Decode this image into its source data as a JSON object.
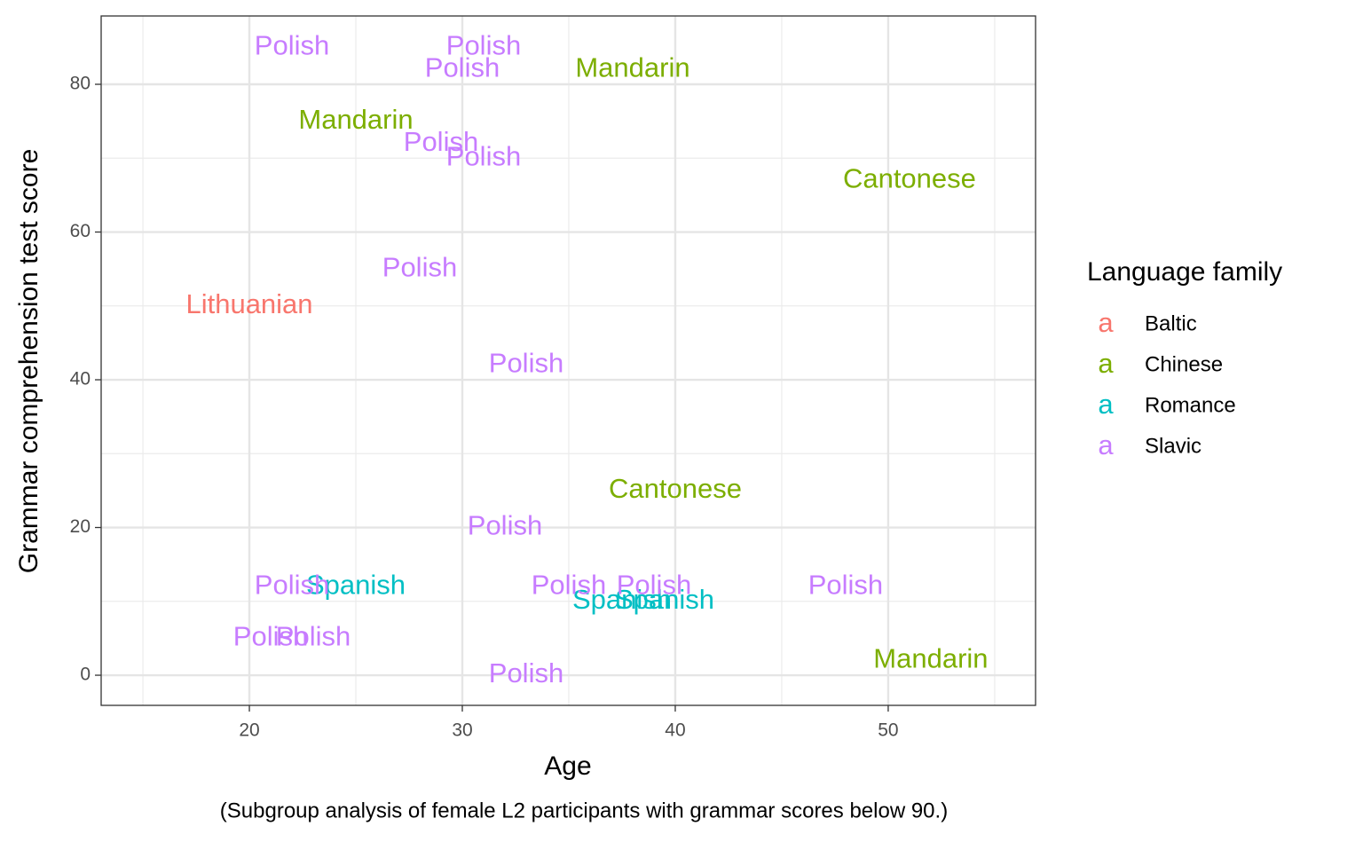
{
  "chart_data": {
    "type": "text-scatter",
    "x_label": "Age",
    "y_label": "Grammar comprehension test score",
    "caption": "(Subgroup analysis of female L2 participants with grammar scores below 90.)",
    "legend_title": "Language family",
    "legend_glyph": "a",
    "legend_position": "right",
    "grid": true,
    "xlim": [
      13.04,
      56.92
    ],
    "ylim": [
      -4.08,
      89.25
    ],
    "xticks": [
      20,
      30,
      40,
      50
    ],
    "yticks": [
      0,
      20,
      40,
      60,
      80
    ],
    "x_minor_ticks": [
      15,
      25,
      35,
      45,
      55
    ],
    "y_minor_ticks": [
      10,
      30,
      50,
      70
    ],
    "series": [
      {
        "name": "Baltic",
        "color": "#F8766D",
        "x": [
          20
        ],
        "y": [
          50
        ],
        "labels": [
          "Lithuanian"
        ]
      },
      {
        "name": "Chinese",
        "color": "#7CAE00",
        "x": [
          38,
          25,
          51,
          40,
          52
        ],
        "y": [
          82,
          75,
          67,
          25,
          2
        ],
        "labels": [
          "Mandarin",
          "Mandarin",
          "Cantonese",
          "Cantonese",
          "Mandarin"
        ]
      },
      {
        "name": "Romance",
        "color": "#00BFC4",
        "x": [
          25,
          37.5,
          39.5
        ],
        "y": [
          12,
          10,
          10
        ],
        "labels": [
          "Spanish",
          "Spanish",
          "Spanish"
        ]
      },
      {
        "name": "Slavic",
        "color": "#C77CFF",
        "x": [
          22,
          31,
          30,
          29,
          31,
          28,
          33,
          32,
          22,
          35,
          39,
          48,
          21,
          23,
          33
        ],
        "y": [
          85,
          85,
          82,
          72,
          70,
          55,
          42,
          20,
          12,
          12,
          12,
          12,
          5,
          5,
          0
        ],
        "labels": [
          "Polish",
          "Polish",
          "Polish",
          "Polish",
          "Polish",
          "Polish",
          "Polish",
          "Polish",
          "Polish",
          "Polish",
          "Polish",
          "Polish",
          "Polish",
          "Polish",
          "Polish"
        ]
      }
    ]
  }
}
